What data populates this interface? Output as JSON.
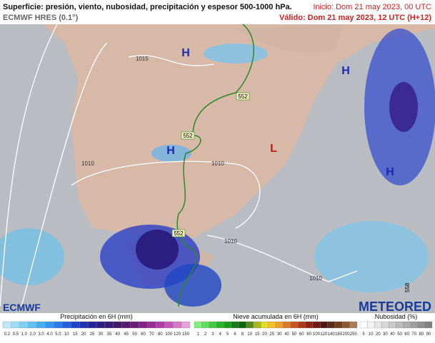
{
  "header": {
    "title": "Superficie: presión, viento, nubosidad, precipitación y espesor 500-1000 hPa.",
    "model": "ECMWF HRES (0.1°)",
    "start": "Inicio: Dom 21 may 2023, 00 UTC",
    "valid": "Válido: Dom 21 may 2023, 12 UTC (H+12)"
  },
  "map": {
    "pressure_centers": [
      "H",
      "H",
      "H",
      "H",
      "L"
    ],
    "isobar_labels": [
      "1015",
      "1010",
      "1010",
      "1010",
      "1010"
    ],
    "thickness_labels": [
      "552",
      "552",
      "552"
    ],
    "corner_label": "558"
  },
  "footer": {
    "left_logo": "ECMWF",
    "right_logo": "METEORED"
  },
  "legends": [
    {
      "title": "Precipitación en 6H (mm)",
      "labels": [
        "0.2",
        "0.5",
        "1.0",
        "2.0",
        "3.0",
        "4.0",
        "5.0",
        "10",
        "15",
        "20",
        "25",
        "30",
        "35",
        "40",
        "45",
        "50",
        "60",
        "70",
        "80",
        "100",
        "120",
        "150"
      ],
      "colors": [
        "#bfe9fb",
        "#9fdcf7",
        "#7fcff4",
        "#5fc0f0",
        "#46aef0",
        "#3796ec",
        "#2a7be6",
        "#2460d8",
        "#2047c6",
        "#1f33b0",
        "#23249a",
        "#2b1d86",
        "#371a78",
        "#45186c",
        "#5a1a70",
        "#6f1c78",
        "#86208a",
        "#9c2b9a",
        "#b23ba8",
        "#c654b8",
        "#d877c9",
        "#e8a0db"
      ]
    },
    {
      "title": "Nieve acumulada en 6H (mm)",
      "labels": [
        "1",
        "2",
        "3",
        "4",
        "5",
        "6",
        "8",
        "10",
        "15",
        "20",
        "25",
        "30",
        "40",
        "50",
        "60",
        "80",
        "100",
        "120",
        "140",
        "160",
        "200",
        "250"
      ],
      "colors": [
        "#7ef07e",
        "#5ee05e",
        "#3fcc3f",
        "#2cb52c",
        "#1f9a1f",
        "#167f16",
        "#0f640f",
        "#5a8a1a",
        "#a8b820",
        "#e2dc2a",
        "#f2c12a",
        "#eea126",
        "#e07a22",
        "#c9561e",
        "#ac3a1c",
        "#8c2718",
        "#6e1c14",
        "#541612",
        "#5a2a12",
        "#6d3d1c",
        "#875a34",
        "#a87c58"
      ]
    },
    {
      "title": "Nubosidad (%)",
      "labels": [
        "5",
        "10",
        "20",
        "30",
        "40",
        "50",
        "60",
        "70",
        "80",
        "90"
      ],
      "colors": [
        "#ffffff",
        "#f4f4f4",
        "#e6e6e6",
        "#d8d8d8",
        "#cacaca",
        "#bbbbbb",
        "#adadad",
        "#9e9e9e",
        "#8f8f8f",
        "#808080"
      ]
    }
  ]
}
